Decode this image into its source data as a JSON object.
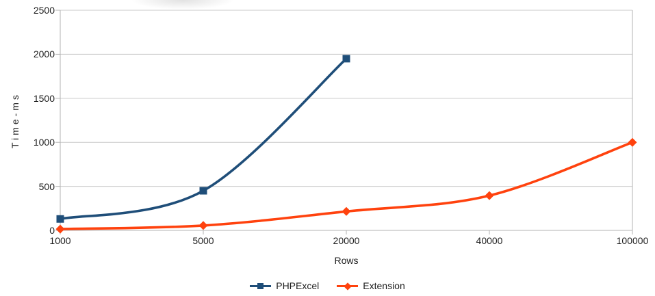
{
  "chart_data": {
    "type": "line",
    "style": "smooth-lines-with-markers",
    "title": "",
    "xlabel": "Rows",
    "ylabel": "Time-ms",
    "categories": [
      "1000",
      "5000",
      "20000",
      "40000",
      "100000"
    ],
    "series": [
      {
        "name": "PHPExcel",
        "color": "#1f4e79",
        "marker": "square",
        "values": [
          130,
          450,
          1950,
          null,
          null
        ]
      },
      {
        "name": "Extension",
        "color": "#ff420e",
        "marker": "diamond",
        "values": [
          15,
          55,
          215,
          395,
          1000
        ]
      }
    ],
    "yticks": [
      0,
      500,
      1000,
      1500,
      2000,
      2500
    ],
    "ylim": [
      0,
      2500
    ],
    "grid": "horizontal-only",
    "grid_color": "#c8c8c8",
    "axis_color": "#b3b3b3",
    "text_color": "#1e1e1e",
    "legend_position": "bottom"
  }
}
